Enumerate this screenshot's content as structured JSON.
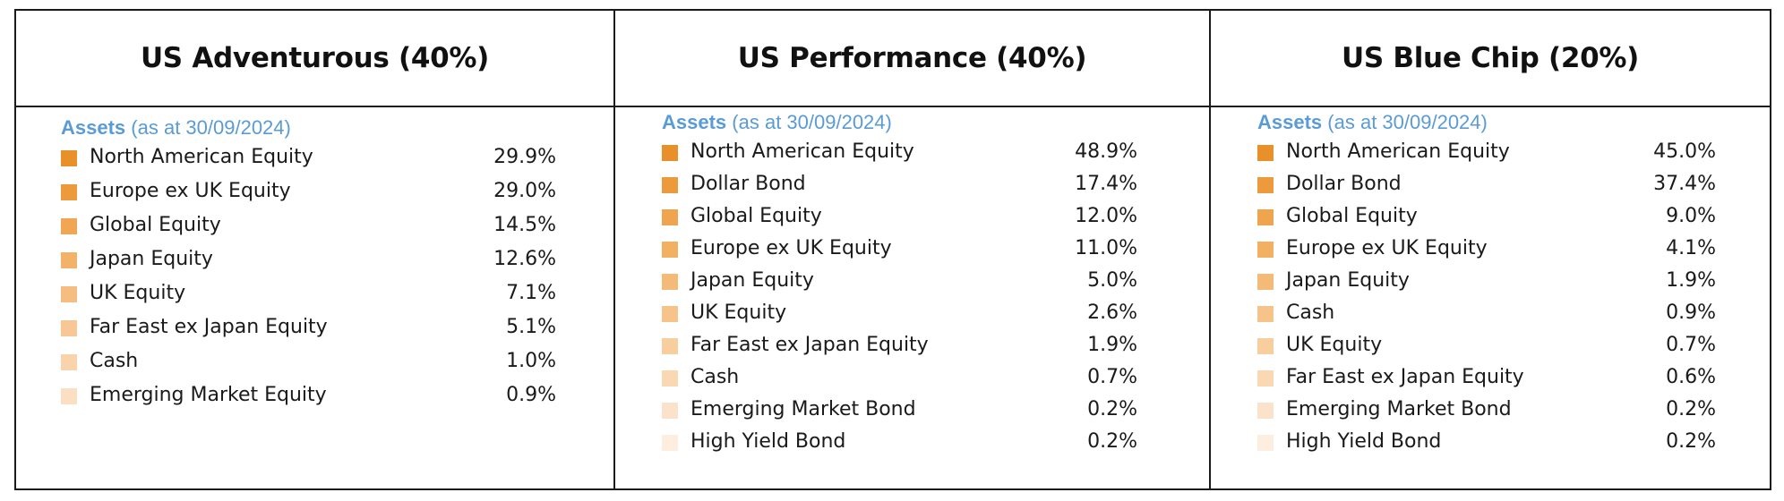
{
  "panels": [
    {
      "title": "US Adventurous (40%)",
      "assets_label": "Assets",
      "assets_date": "(as at 30/09/2024)",
      "items": [
        {
          "label": "North American Equity",
          "value": "29.9%",
          "color": "#e8912b"
        },
        {
          "label": "Europe ex UK Equity",
          "value": "29.0%",
          "color": "#ec9a3c"
        },
        {
          "label": "Global Equity",
          "value": "14.5%",
          "color": "#f0a652"
        },
        {
          "label": "Japan Equity",
          "value": "12.6%",
          "color": "#f3b26a"
        },
        {
          "label": "UK Equity",
          "value": "7.1%",
          "color": "#f5bd80"
        },
        {
          "label": "Far East ex Japan Equity",
          "value": "5.1%",
          "color": "#f7c895"
        },
        {
          "label": "Cash",
          "value": "1.0%",
          "color": "#f9d3ab"
        },
        {
          "label": "Emerging Market Equity",
          "value": "0.9%",
          "color": "#fbdfc3"
        }
      ]
    },
    {
      "title": "US Performance (40%)",
      "assets_label": "Assets",
      "assets_date": "(as at 30/09/2024)",
      "items": [
        {
          "label": "North American Equity",
          "value": "48.9%",
          "color": "#e8912b"
        },
        {
          "label": "Dollar Bond",
          "value": "17.4%",
          "color": "#ec9a3c"
        },
        {
          "label": "Global Equity",
          "value": "12.0%",
          "color": "#efa54f"
        },
        {
          "label": "Europe ex UK Equity",
          "value": "11.0%",
          "color": "#f2b063"
        },
        {
          "label": "Japan Equity",
          "value": "5.0%",
          "color": "#f4ba77"
        },
        {
          "label": "UK Equity",
          "value": "2.6%",
          "color": "#f6c48b"
        },
        {
          "label": "Far East ex Japan Equity",
          "value": "1.9%",
          "color": "#f8ce9f"
        },
        {
          "label": "Cash",
          "value": "0.7%",
          "color": "#fad8b4"
        },
        {
          "label": "Emerging Market Bond",
          "value": "0.2%",
          "color": "#fbe3cb"
        },
        {
          "label": "High Yield Bond",
          "value": "0.2%",
          "color": "#fdeee0"
        }
      ]
    },
    {
      "title": "US Blue Chip (20%)",
      "assets_label": "Assets",
      "assets_date": "(as at 30/09/2024)",
      "items": [
        {
          "label": "North American Equity",
          "value": "45.0%",
          "color": "#e8912b"
        },
        {
          "label": "Dollar Bond",
          "value": "37.4%",
          "color": "#ec9a3c"
        },
        {
          "label": "Global Equity",
          "value": "9.0%",
          "color": "#efa54f"
        },
        {
          "label": "Europe ex UK Equity",
          "value": "4.1%",
          "color": "#f2b063"
        },
        {
          "label": "Japan Equity",
          "value": "1.9%",
          "color": "#f4ba77"
        },
        {
          "label": "Cash",
          "value": "0.9%",
          "color": "#f6c48b"
        },
        {
          "label": "UK Equity",
          "value": "0.7%",
          "color": "#f8ce9f"
        },
        {
          "label": "Far East ex Japan Equity",
          "value": "0.6%",
          "color": "#fad8b4"
        },
        {
          "label": "Emerging Market Bond",
          "value": "0.2%",
          "color": "#fbe3cb"
        },
        {
          "label": "High Yield Bond",
          "value": "0.2%",
          "color": "#fdeee0"
        }
      ]
    }
  ]
}
